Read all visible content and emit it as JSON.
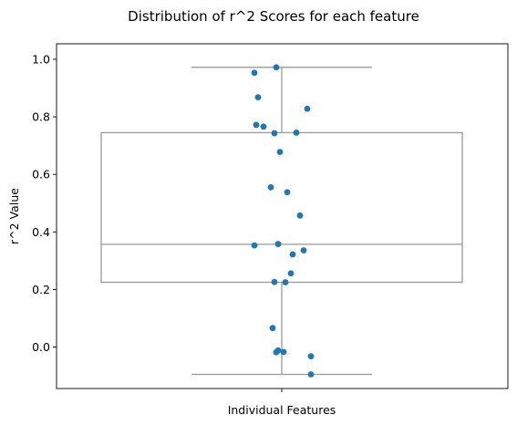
{
  "chart_data": {
    "type": "box+strip",
    "title": "Distribution of r^2 Scores for each feature",
    "xlabel": "Individual Features",
    "ylabel": "r^2 Value",
    "ylim": [
      -0.105,
      1.03
    ],
    "yticks": [
      "0.0",
      "0.2",
      "0.4",
      "0.6",
      "0.8",
      "1.0"
    ],
    "ytick_values": [
      0.0,
      0.2,
      0.4,
      0.6,
      0.8,
      1.0
    ],
    "grid": false,
    "box": {
      "whisker_low": -0.095,
      "q1": 0.225,
      "median": 0.357,
      "q3": 0.745,
      "whisker_high": 0.972,
      "box_color": "#ffffff",
      "line_color": "#999999"
    },
    "points": [
      {
        "jitter": -0.03,
        "y": 0.972
      },
      {
        "jitter": -0.15,
        "y": 0.953
      },
      {
        "jitter": -0.13,
        "y": 0.868
      },
      {
        "jitter": 0.14,
        "y": 0.828
      },
      {
        "jitter": -0.14,
        "y": 0.772
      },
      {
        "jitter": -0.1,
        "y": 0.766
      },
      {
        "jitter": 0.08,
        "y": 0.745
      },
      {
        "jitter": -0.04,
        "y": 0.743
      },
      {
        "jitter": -0.01,
        "y": 0.678
      },
      {
        "jitter": -0.06,
        "y": 0.555
      },
      {
        "jitter": 0.03,
        "y": 0.538
      },
      {
        "jitter": 0.1,
        "y": 0.457
      },
      {
        "jitter": -0.02,
        "y": 0.358
      },
      {
        "jitter": -0.15,
        "y": 0.353
      },
      {
        "jitter": 0.12,
        "y": 0.336
      },
      {
        "jitter": 0.06,
        "y": 0.322
      },
      {
        "jitter": 0.05,
        "y": 0.256
      },
      {
        "jitter": -0.04,
        "y": 0.226
      },
      {
        "jitter": 0.02,
        "y": 0.225
      },
      {
        "jitter": -0.05,
        "y": 0.066
      },
      {
        "jitter": -0.02,
        "y": -0.012
      },
      {
        "jitter": 0.01,
        "y": -0.017
      },
      {
        "jitter": -0.03,
        "y": -0.018
      },
      {
        "jitter": 0.16,
        "y": -0.032
      },
      {
        "jitter": 0.16,
        "y": -0.095
      }
    ],
    "point_color": "#1f77b4"
  }
}
